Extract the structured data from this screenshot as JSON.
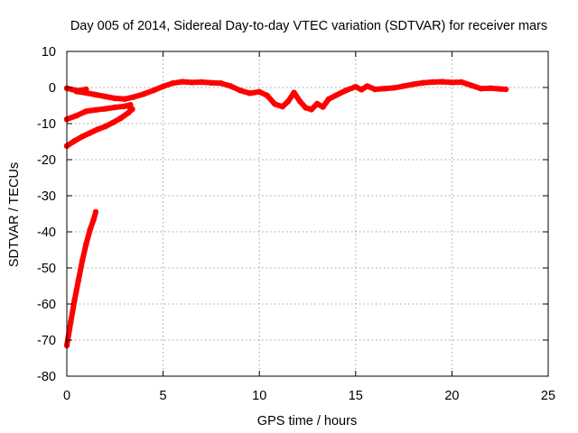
{
  "chart_data": {
    "type": "line",
    "title": "Day 005 of 2014, Sidereal Day-to-day VTEC variation (SDTVAR) for receiver mars",
    "xlabel": "GPS time / hours",
    "ylabel": "SDTVAR / TECUs",
    "xlim": [
      0,
      25
    ],
    "ylim": [
      -80,
      10
    ],
    "x_ticks": [
      0,
      5,
      10,
      15,
      20,
      25
    ],
    "y_ticks": [
      10,
      0,
      -10,
      -20,
      -30,
      -40,
      -50,
      -60,
      -70,
      -80
    ],
    "grid": true,
    "series_color": "#ff0000",
    "series": [
      {
        "name": "trace-1",
        "points": [
          [
            0.0,
            -0.2
          ],
          [
            0.3,
            -0.6
          ],
          [
            0.6,
            -0.9
          ],
          [
            0.8,
            -0.7
          ],
          [
            1.0,
            -0.5
          ]
        ]
      },
      {
        "name": "trace-2",
        "points": [
          [
            0.5,
            -1.1
          ],
          [
            1.0,
            -1.5
          ],
          [
            1.5,
            -2.0
          ],
          [
            2.0,
            -2.5
          ],
          [
            2.5,
            -3.0
          ],
          [
            3.0,
            -3.2
          ],
          [
            3.5,
            -2.6
          ],
          [
            4.0,
            -1.8
          ],
          [
            4.5,
            -0.8
          ],
          [
            5.0,
            0.3
          ],
          [
            5.5,
            1.2
          ],
          [
            6.0,
            1.6
          ],
          [
            6.5,
            1.4
          ],
          [
            7.0,
            1.5
          ],
          [
            7.5,
            1.3
          ],
          [
            8.0,
            1.2
          ],
          [
            8.5,
            0.4
          ],
          [
            9.0,
            -0.8
          ],
          [
            9.5,
            -1.6
          ],
          [
            10.0,
            -1.2
          ],
          [
            10.4,
            -2.2
          ],
          [
            10.8,
            -4.6
          ],
          [
            11.2,
            -5.3
          ],
          [
            11.5,
            -3.8
          ],
          [
            11.8,
            -1.4
          ],
          [
            12.1,
            -3.8
          ],
          [
            12.4,
            -5.6
          ],
          [
            12.7,
            -6.1
          ],
          [
            13.0,
            -4.5
          ],
          [
            13.3,
            -5.4
          ],
          [
            13.6,
            -3.2
          ],
          [
            14.0,
            -2.1
          ],
          [
            14.5,
            -0.8
          ],
          [
            15.0,
            0.2
          ],
          [
            15.3,
            -0.6
          ],
          [
            15.6,
            0.4
          ],
          [
            16.0,
            -0.5
          ],
          [
            16.5,
            -0.3
          ],
          [
            17.0,
            -0.1
          ],
          [
            17.5,
            0.4
          ],
          [
            18.0,
            0.9
          ],
          [
            18.5,
            1.3
          ],
          [
            19.0,
            1.5
          ],
          [
            19.5,
            1.6
          ],
          [
            20.0,
            1.4
          ],
          [
            20.5,
            1.5
          ],
          [
            21.0,
            0.6
          ],
          [
            21.5,
            -0.3
          ],
          [
            22.0,
            -0.2
          ],
          [
            22.5,
            -0.4
          ],
          [
            22.8,
            -0.5
          ]
        ]
      },
      {
        "name": "trace-3",
        "points": [
          [
            0.0,
            -8.8
          ],
          [
            0.5,
            -7.8
          ],
          [
            1.0,
            -6.6
          ],
          [
            1.5,
            -6.2
          ],
          [
            2.0,
            -5.9
          ],
          [
            2.5,
            -5.5
          ],
          [
            3.0,
            -5.2
          ],
          [
            3.3,
            -4.8
          ]
        ]
      },
      {
        "name": "trace-4",
        "points": [
          [
            0.0,
            -16.2
          ],
          [
            0.4,
            -14.8
          ],
          [
            0.8,
            -13.6
          ],
          [
            1.2,
            -12.6
          ],
          [
            1.6,
            -11.6
          ],
          [
            2.0,
            -10.8
          ],
          [
            2.4,
            -9.7
          ],
          [
            2.8,
            -8.5
          ],
          [
            3.2,
            -7.0
          ],
          [
            3.4,
            -6.0
          ],
          [
            3.2,
            -5.2
          ]
        ]
      },
      {
        "name": "trace-5",
        "points": [
          [
            0.0,
            -71.5
          ],
          [
            0.2,
            -65.0
          ],
          [
            0.4,
            -59.0
          ],
          [
            0.6,
            -53.5
          ],
          [
            0.8,
            -48.0
          ],
          [
            1.0,
            -43.5
          ],
          [
            1.2,
            -39.5
          ],
          [
            1.4,
            -36.5
          ],
          [
            1.5,
            -34.5
          ]
        ]
      }
    ]
  }
}
